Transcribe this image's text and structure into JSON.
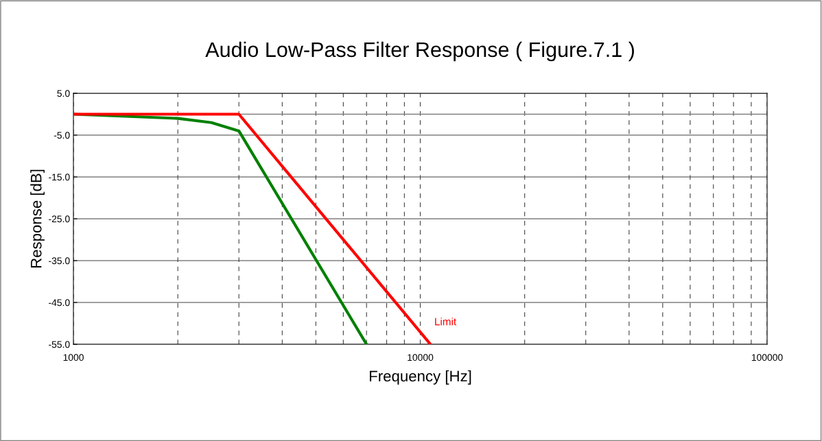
{
  "chart_data": {
    "type": "line",
    "title": "Audio Low-Pass Filter Response ( Figure.7.1 )",
    "xlabel": "Frequency [Hz]",
    "ylabel": "Response [dB]",
    "log": "x",
    "xlim": [
      1000,
      100000
    ],
    "xticks": [
      1000,
      10000,
      100000
    ],
    "ylim": [
      -55,
      5
    ],
    "yticks": [
      {
        "value": 5,
        "label": "5.0"
      },
      {
        "value": -5,
        "label": "-5.0"
      },
      {
        "value": -15,
        "label": "-15.0"
      },
      {
        "value": -25,
        "label": "-25.0"
      },
      {
        "value": -35,
        "label": "-35.0"
      },
      {
        "value": -45,
        "label": "-45.0"
      },
      {
        "value": -55,
        "label": "-55.0"
      }
    ],
    "grid": true,
    "legend": false,
    "marker": "none",
    "line_style": "solid",
    "ref_lines": [
      {
        "axis": "y",
        "value": 0,
        "color": "#808080"
      }
    ],
    "series": [
      {
        "color": "#008000",
        "x": [
          1000,
          2000,
          2500,
          3000,
          7000
        ],
        "values": [
          0,
          -1,
          -2,
          -4,
          -55
        ]
      },
      {
        "name": "Limit",
        "color": "#ff0000",
        "x": [
          1000,
          3000,
          10700
        ],
        "values": [
          0,
          0,
          -55
        ]
      }
    ]
  }
}
